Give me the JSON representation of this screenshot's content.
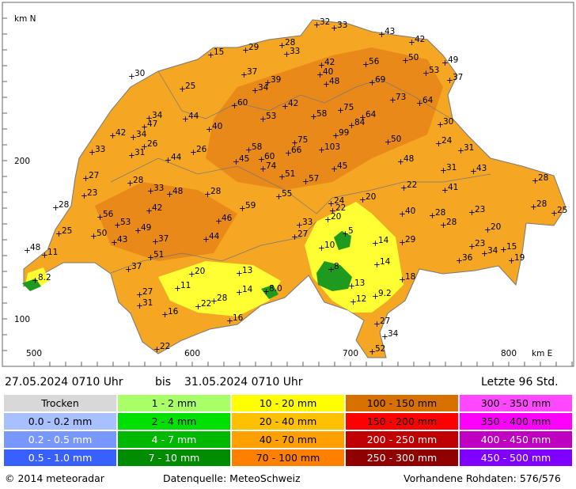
{
  "map": {
    "north_label": "km N",
    "east_label": "km E",
    "y_labels": [
      "200",
      "100"
    ],
    "x_labels": [
      "500",
      "600",
      "700",
      "800"
    ],
    "stations": [
      "32",
      "33",
      "43",
      "42",
      "15",
      "29",
      "28",
      "33",
      "56",
      "50",
      "49",
      "30",
      "37",
      "42",
      "40",
      "53",
      "37",
      "25",
      "34",
      "39",
      "48",
      "69",
      "73",
      "64",
      "60",
      "42",
      "34",
      "44",
      "53",
      "58",
      "75",
      "64",
      "84",
      "30",
      "47",
      "40",
      "99",
      "42",
      "34",
      "26",
      "75",
      "24",
      "50",
      "33",
      "31",
      "58",
      "66",
      "103",
      "31",
      "44",
      "26",
      "45",
      "60",
      "48",
      "27",
      "74",
      "51",
      "45",
      "31",
      "43",
      "28",
      "57",
      "28",
      "23",
      "33",
      "48",
      "28",
      "55",
      "20",
      "22",
      "41",
      "24",
      "22",
      "28",
      "59",
      "42",
      "20",
      "40",
      "28",
      "23",
      "28",
      "25",
      "56",
      "53",
      "46",
      "33",
      "28",
      "25",
      "49",
      "27",
      "5",
      "50",
      "37",
      "44",
      "20",
      "43",
      "14",
      "29",
      "48",
      "11",
      "51",
      "10",
      "23",
      "34",
      "15",
      "19",
      "36",
      "14",
      "37",
      "8",
      "20",
      "13",
      "8.2",
      "18",
      "11",
      "13",
      "14",
      "8.0",
      "27",
      "9.2",
      "12",
      "28",
      "31",
      "22",
      "16",
      "16",
      "27",
      "34",
      "22",
      "52"
    ]
  },
  "header": {
    "from": "27.05.2024 0710 Uhr",
    "separator": "bis",
    "to": "31.05.2024 0710 Uhr",
    "window": "Letzte 96 Std."
  },
  "legend": {
    "rows": [
      [
        "Trocken",
        "1 - 2 mm",
        "10 - 20 mm",
        "100 - 150 mm",
        "300 - 350 mm"
      ],
      [
        "0.0 - 0.2 mm",
        "2 - 4 mm",
        "20 - 40 mm",
        "150 - 200 mm",
        "350 - 400 mm"
      ],
      [
        "0.2 - 0.5 mm",
        "4 - 7 mm",
        "40 - 70 mm",
        "200 - 250 mm",
        "400 - 450 mm"
      ],
      [
        "0.5 - 1.0 mm",
        "7 - 10 mm",
        "70 - 100 mm",
        "250 - 300 mm",
        "450 - 500 mm"
      ]
    ]
  },
  "footer": {
    "copyright": "© 2014  meteoradar",
    "source": "Datenquelle: MeteoSchweiz",
    "raw": "Vorhandene Rohdaten: 576/576"
  }
}
